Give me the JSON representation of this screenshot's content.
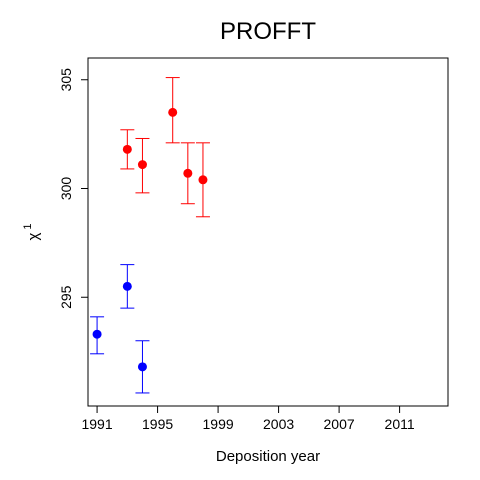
{
  "chart_data": {
    "type": "scatter",
    "title": "PROFFT",
    "xlabel": "Deposition year",
    "ylabel": "χ",
    "ylabel_sup": "1",
    "xlim": [
      1990.4,
      2014.2
    ],
    "ylim": [
      290.0,
      306.0
    ],
    "x_ticks": [
      1991,
      1995,
      1999,
      2003,
      2007,
      2011
    ],
    "y_ticks": [
      295,
      300,
      305
    ],
    "grid": false,
    "legend": "none",
    "series": [
      {
        "color": "#ff0000",
        "points": [
          {
            "x": 1993,
            "y": 301.8,
            "lo": 300.9,
            "hi": 302.7
          },
          {
            "x": 1994,
            "y": 301.1,
            "lo": 299.8,
            "hi": 302.3
          },
          {
            "x": 1996,
            "y": 303.5,
            "lo": 302.1,
            "hi": 305.1
          },
          {
            "x": 1997,
            "y": 300.7,
            "lo": 299.3,
            "hi": 302.1
          },
          {
            "x": 1998,
            "y": 300.4,
            "lo": 298.7,
            "hi": 302.1
          }
        ]
      },
      {
        "color": "#0000ff",
        "points": [
          {
            "x": 1991,
            "y": 293.3,
            "lo": 292.4,
            "hi": 294.1
          },
          {
            "x": 1993,
            "y": 295.5,
            "lo": 294.5,
            "hi": 296.5
          },
          {
            "x": 1994,
            "y": 291.8,
            "lo": 290.6,
            "hi": 293.0
          }
        ]
      }
    ]
  }
}
